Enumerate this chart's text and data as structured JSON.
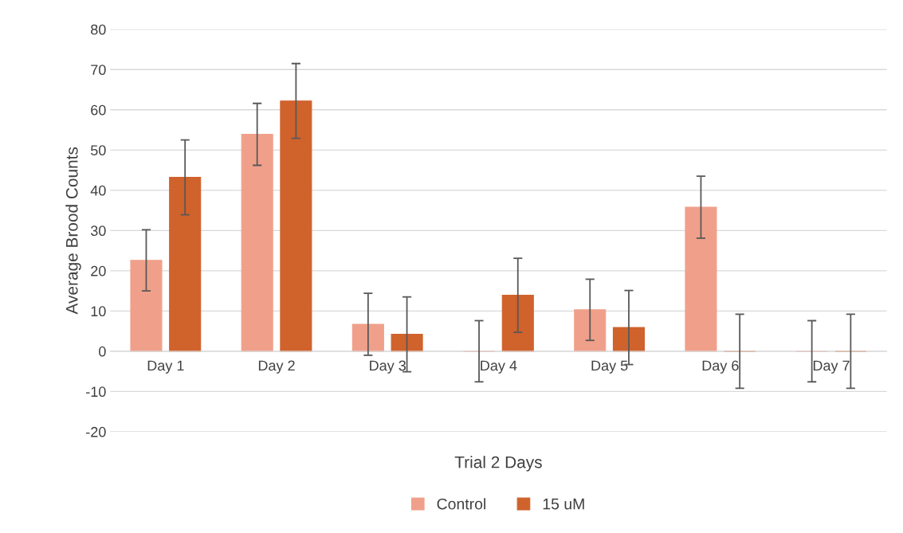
{
  "chart_data": {
    "type": "bar",
    "xlabel": "Trial 2 Days",
    "ylabel": "Average Brood Counts",
    "categories": [
      "Day 1",
      "Day 2",
      "Day 3",
      "Day 4",
      "Day 5",
      "Day 6",
      "Day 7"
    ],
    "series": [
      {
        "name": "Control",
        "color": "#f0a08a",
        "values": [
          22.6,
          53.9,
          6.7,
          0,
          10.3,
          35.8,
          0
        ],
        "errors": [
          7.6,
          7.7,
          7.7,
          7.6,
          7.6,
          7.7,
          7.6
        ]
      },
      {
        "name": "15 uM",
        "color": "#d0622c",
        "values": [
          43.2,
          62.2,
          4.2,
          13.9,
          5.9,
          0,
          0
        ],
        "errors": [
          9.3,
          9.3,
          9.3,
          9.2,
          9.2,
          9.2,
          9.2
        ]
      }
    ],
    "ylim": [
      -20,
      80
    ],
    "yticks": [
      -20,
      -10,
      0,
      10,
      20,
      30,
      40,
      50,
      60,
      70,
      80
    ],
    "grid": "y",
    "legend": "bottom"
  }
}
